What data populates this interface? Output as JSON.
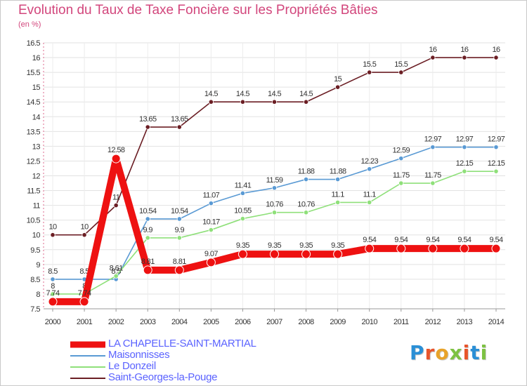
{
  "header": {
    "title": "Evolution du Taux de Taxe Foncière sur les Propriétés Bâties",
    "unit": "(en %)"
  },
  "chart_data": {
    "type": "line",
    "title": "Evolution du Taux de Taxe Foncière sur les Propriétés Bâties",
    "ylabel": "(en %)",
    "xlabel": "",
    "x": [
      2000,
      2001,
      2002,
      2003,
      2004,
      2005,
      2006,
      2007,
      2008,
      2009,
      2010,
      2011,
      2012,
      2013,
      2014
    ],
    "ylim": [
      7.5,
      16.5
    ],
    "yticks": [
      7.5,
      8,
      8.5,
      9,
      9.5,
      10,
      10.5,
      11,
      11.5,
      12,
      12.5,
      13,
      13.5,
      14,
      14.5,
      15,
      15.5,
      16,
      16.5
    ],
    "grid": true,
    "legend_position": "bottom-left",
    "series": [
      {
        "name": "Saint-Georges-la-Pouge",
        "color": "#6b1e24",
        "values": [
          10,
          10,
          11,
          13.65,
          13.65,
          14.5,
          14.5,
          14.5,
          14.5,
          15,
          15.5,
          15.5,
          16,
          16,
          16
        ],
        "labels": [
          "10",
          "10",
          "11",
          "13.65",
          "13.65",
          "14.5",
          "14.5",
          "14.5",
          "14.5",
          "15",
          "15.5",
          "15.5",
          "16",
          "16",
          "16"
        ]
      },
      {
        "name": "Maisonnisses",
        "color": "#5a9ad4",
        "values": [
          8.5,
          8.5,
          8.5,
          10.54,
          10.54,
          11.07,
          11.41,
          11.59,
          11.88,
          11.88,
          12.23,
          12.59,
          12.97,
          12.97,
          12.97
        ],
        "labels": [
          "8.5",
          "8.5",
          "8.5",
          "10.54",
          "10.54",
          "11.07",
          "11.41",
          "11.59",
          "11.88",
          "11.88",
          "12.23",
          "12.59",
          "12.97",
          "12.97",
          "12.97"
        ]
      },
      {
        "name": "Le Donzeil",
        "color": "#8fe07a",
        "values": [
          8,
          8,
          8.61,
          9.9,
          9.9,
          10.17,
          10.55,
          10.76,
          10.76,
          11.1,
          11.1,
          11.75,
          11.75,
          12.15,
          12.15
        ],
        "labels": [
          "8",
          "8",
          "8.61",
          "9.9",
          "9.9",
          "10.17",
          "10.55",
          "10.76",
          "10.76",
          "11.1",
          "11.1",
          "11.75",
          "11.75",
          "12.15",
          "12.15"
        ]
      },
      {
        "name": "LA CHAPELLE-SAINT-MARTIAL",
        "color": "#ee1111",
        "values": [
          7.74,
          7.74,
          12.58,
          8.81,
          8.81,
          9.07,
          9.35,
          9.35,
          9.35,
          9.35,
          9.54,
          9.54,
          9.54,
          9.54,
          9.54
        ],
        "labels": [
          "7.74",
          "7.74",
          "12.58",
          "8.81",
          "8.81",
          "9.07",
          "9.35",
          "9.35",
          "9.35",
          "9.35",
          "9.54",
          "9.54",
          "9.54",
          "9.54",
          "9.54"
        ]
      }
    ]
  },
  "legend": {
    "items": [
      {
        "label": "LA CHAPELLE-SAINT-MARTIAL",
        "color": "#ee1111"
      },
      {
        "label": "Maisonnisses",
        "color": "#5a9ad4"
      },
      {
        "label": "Le Donzeil",
        "color": "#8fe07a"
      },
      {
        "label": "Saint-Georges-la-Pouge",
        "color": "#6b1e24"
      }
    ]
  },
  "logo": {
    "text": [
      "P",
      "r",
      "o",
      "x",
      "i",
      "t",
      "i"
    ],
    "colors": [
      "#2a8fd6",
      "#e8542a",
      "#e8a32a",
      "#7dc242",
      "#e8542a",
      "#2a8fd6",
      "#7dc242"
    ]
  }
}
